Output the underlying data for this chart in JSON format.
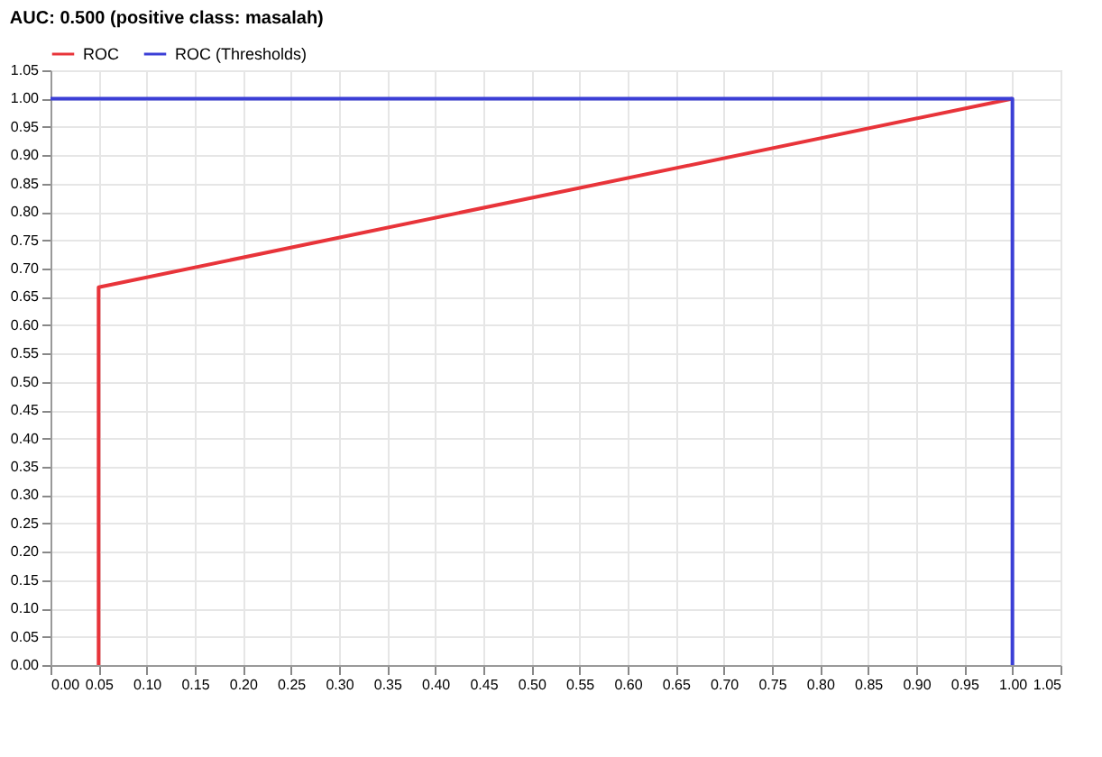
{
  "chart_data": {
    "type": "line",
    "title": "AUC: 0.500 (positive class: masalah)",
    "series": [
      {
        "name": "ROC",
        "color": "#e8343a",
        "x": [
          0.05,
          0.05,
          1.0
        ],
        "values": [
          0,
          0.667,
          1.0
        ]
      },
      {
        "name": "ROC (Thresholds)",
        "color": "#3b3fd6",
        "x": [
          0,
          1.0,
          1.0
        ],
        "values": [
          1.0,
          1.0,
          0
        ]
      }
    ],
    "xlim": [
      0,
      1.05
    ],
    "ylim": [
      0,
      1.05
    ],
    "xticks": [
      {
        "value": 0,
        "label": "0.00"
      },
      {
        "value": 0.05,
        "label": "0.05"
      },
      {
        "value": 0.1,
        "label": "0.10"
      },
      {
        "value": 0.15,
        "label": "0.15"
      },
      {
        "value": 0.2,
        "label": "0.20"
      },
      {
        "value": 0.25,
        "label": "0.25"
      },
      {
        "value": 0.3,
        "label": "0.30"
      },
      {
        "value": 0.35,
        "label": "0.35"
      },
      {
        "value": 0.4,
        "label": "0.40"
      },
      {
        "value": 0.45,
        "label": "0.45"
      },
      {
        "value": 0.5,
        "label": "0.50"
      },
      {
        "value": 0.55,
        "label": "0.55"
      },
      {
        "value": 0.6,
        "label": "0.60"
      },
      {
        "value": 0.65,
        "label": "0.65"
      },
      {
        "value": 0.7,
        "label": "0.70"
      },
      {
        "value": 0.75,
        "label": "0.75"
      },
      {
        "value": 0.8,
        "label": "0.80"
      },
      {
        "value": 0.85,
        "label": "0.85"
      },
      {
        "value": 0.9,
        "label": "0.90"
      },
      {
        "value": 0.95,
        "label": "0.95"
      },
      {
        "value": 1.0,
        "label": "1.00"
      },
      {
        "value": 1.05,
        "label": "1.05"
      }
    ],
    "yticks": [
      {
        "value": 0,
        "label": "0.00"
      },
      {
        "value": 0.05,
        "label": "0.05"
      },
      {
        "value": 0.1,
        "label": "0.10"
      },
      {
        "value": 0.15,
        "label": "0.15"
      },
      {
        "value": 0.2,
        "label": "0.20"
      },
      {
        "value": 0.25,
        "label": "0.25"
      },
      {
        "value": 0.3,
        "label": "0.30"
      },
      {
        "value": 0.35,
        "label": "0.35"
      },
      {
        "value": 0.4,
        "label": "0.40"
      },
      {
        "value": 0.45,
        "label": "0.45"
      },
      {
        "value": 0.5,
        "label": "0.50"
      },
      {
        "value": 0.55,
        "label": "0.55"
      },
      {
        "value": 0.6,
        "label": "0.60"
      },
      {
        "value": 0.65,
        "label": "0.65"
      },
      {
        "value": 0.7,
        "label": "0.70"
      },
      {
        "value": 0.75,
        "label": "0.75"
      },
      {
        "value": 0.8,
        "label": "0.80"
      },
      {
        "value": 0.85,
        "label": "0.85"
      },
      {
        "value": 0.9,
        "label": "0.90"
      },
      {
        "value": 0.95,
        "label": "0.95"
      },
      {
        "value": 1.0,
        "label": "1.00"
      },
      {
        "value": 1.05,
        "label": "1.05"
      }
    ],
    "grid": true,
    "legend": "top left",
    "marker": "none",
    "line_style": "solid"
  }
}
